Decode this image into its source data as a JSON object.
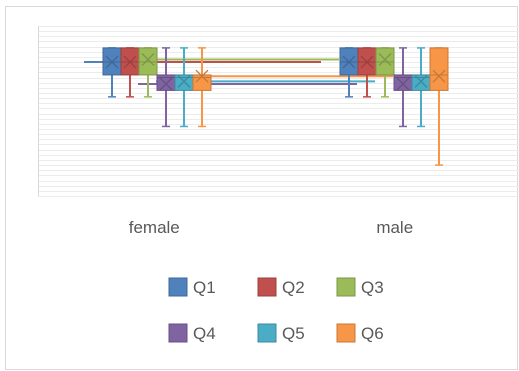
{
  "chart_data": {
    "type": "box",
    "categories": [
      "female",
      "male"
    ],
    "series": [
      {
        "name": "Q1",
        "color": "#4f81bd",
        "stats": [
          {
            "min": 5.45,
            "q1": 6.3,
            "median": 6.8,
            "q3": 7.35,
            "max": 7.35,
            "mean": 6.8
          },
          {
            "min": 5.45,
            "q1": 6.3,
            "median": 6.8,
            "q3": 7.35,
            "max": 7.35,
            "mean": 6.8
          }
        ]
      },
      {
        "name": "Q2",
        "color": "#c0504d",
        "stats": [
          {
            "min": 5.45,
            "q1": 6.3,
            "median": 6.8,
            "q3": 7.35,
            "max": 7.35,
            "mean": 6.8
          },
          {
            "min": 5.45,
            "q1": 6.3,
            "median": 6.8,
            "q3": 7.35,
            "max": 7.35,
            "mean": 6.8
          }
        ]
      },
      {
        "name": "Q3",
        "color": "#9bbb59",
        "stats": [
          {
            "min": 5.45,
            "q1": 6.3,
            "median": 6.8,
            "q3": 7.35,
            "max": 7.35,
            "mean": 6.9
          },
          {
            "min": 5.45,
            "q1": 6.3,
            "median": 6.8,
            "q3": 7.35,
            "max": 7.35,
            "mean": 6.9
          }
        ]
      },
      {
        "name": "Q4",
        "color": "#8064a2",
        "stats": [
          {
            "min": 4.3,
            "q1": 5.7,
            "median": 6.2,
            "q3": 6.3,
            "max": 7.35,
            "mean": 5.95
          },
          {
            "min": 4.3,
            "q1": 5.7,
            "median": 6.2,
            "q3": 6.3,
            "max": 7.35,
            "mean": 5.95
          }
        ]
      },
      {
        "name": "Q5",
        "color": "#4bacc6",
        "stats": [
          {
            "min": 4.3,
            "q1": 5.7,
            "median": 6.2,
            "q3": 6.3,
            "max": 7.35,
            "mean": 6.05
          },
          {
            "min": 4.3,
            "q1": 5.7,
            "median": 6.2,
            "q3": 6.3,
            "max": 7.35,
            "mean": 6.05
          }
        ]
      },
      {
        "name": "Q6",
        "color": "#f79646",
        "stats": [
          {
            "min": 4.3,
            "q1": 5.7,
            "median": 6.2,
            "q3": 6.3,
            "max": 7.35,
            "mean": 6.25
          },
          {
            "min": 2.8,
            "q1": 5.7,
            "median": 6.3,
            "q3": 7.35,
            "max": 7.35,
            "mean": 6.25
          }
        ]
      }
    ],
    "ylim": [
      1.6,
      8.2
    ],
    "grid": true,
    "legend_position": "bottom"
  }
}
